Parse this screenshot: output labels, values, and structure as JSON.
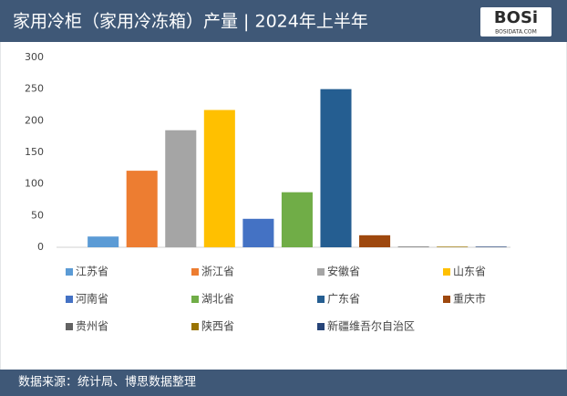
{
  "chart_data": {
    "type": "bar",
    "title": "家用冷柜（家用冷冻箱）产量 | 2024年上半年",
    "logo": "BOSi",
    "logo_site": "BOSIDATA.COM",
    "source": "数据来源：统计局、博思数据整理",
    "categories": [
      null
    ],
    "series": [
      {
        "name": "江苏省",
        "color": "#5b9bd5",
        "values": [
          17
        ]
      },
      {
        "name": "浙江省",
        "color": "#ed7d31",
        "values": [
          121
        ]
      },
      {
        "name": "安徽省",
        "color": "#a5a5a5",
        "values": [
          185
        ]
      },
      {
        "name": "山东省",
        "color": "#ffc000",
        "values": [
          217
        ]
      },
      {
        "name": "河南省",
        "color": "#4472c4",
        "values": [
          45
        ]
      },
      {
        "name": "湖北省",
        "color": "#70ad47",
        "values": [
          87
        ]
      },
      {
        "name": "广东省",
        "color": "#255e91",
        "values": [
          250
        ]
      },
      {
        "name": "重庆市",
        "color": "#9e480e",
        "values": [
          19
        ]
      },
      {
        "name": "贵州省",
        "color": "#636363",
        "values": [
          1
        ]
      },
      {
        "name": "陕西省",
        "color": "#997300",
        "values": [
          1
        ]
      },
      {
        "name": "新疆维吾尔自治区",
        "color": "#264478",
        "values": [
          1
        ]
      }
    ],
    "ylim": [
      0,
      300
    ],
    "yticks": [
      0,
      50,
      100,
      150,
      200,
      250,
      300
    ],
    "grid": false,
    "legend": "bottom"
  }
}
